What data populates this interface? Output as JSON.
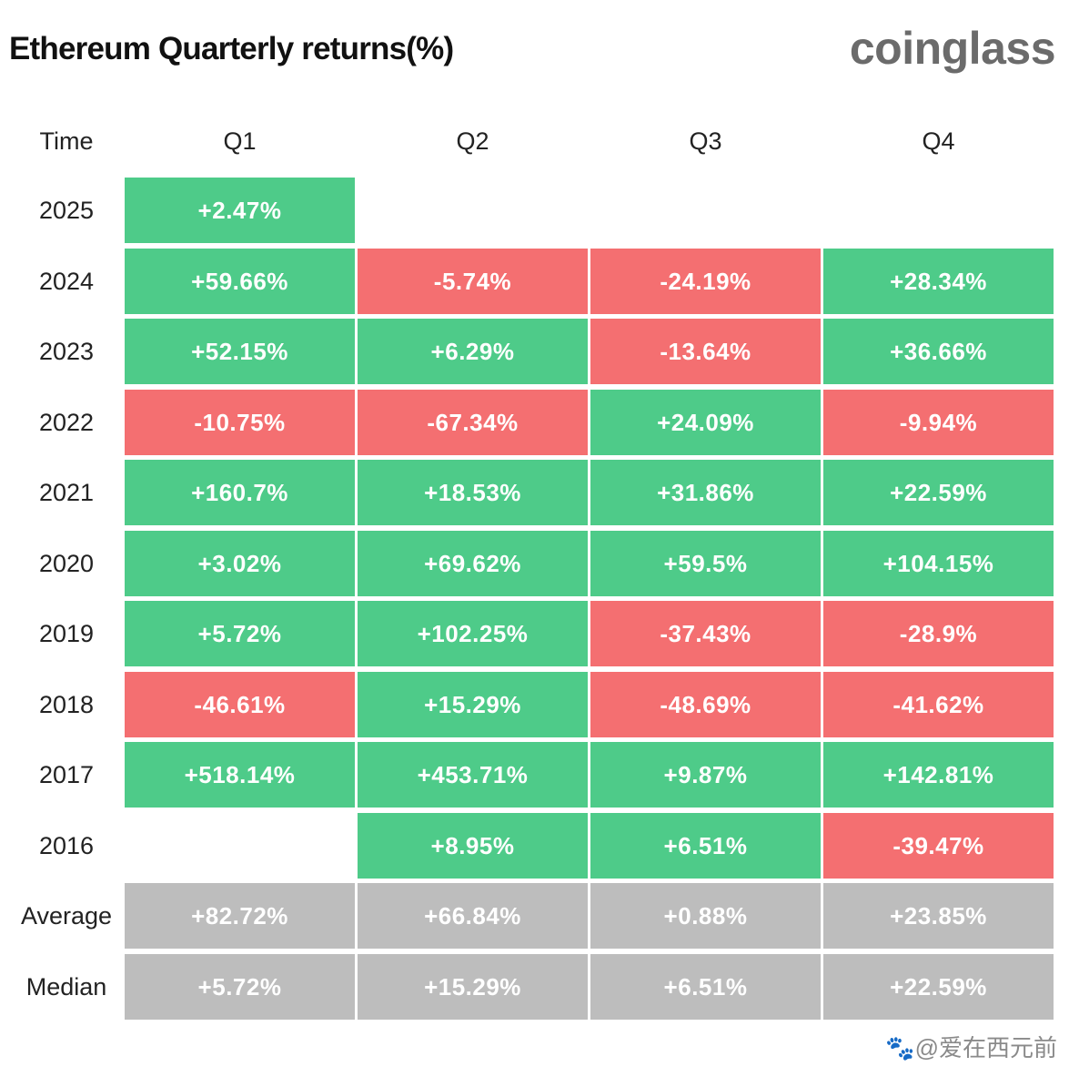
{
  "title": "Ethereum Quarterly returns(%)",
  "logo": "coinglass",
  "watermark": "🐾@爱在西元前",
  "colors": {
    "positive": "#4ecb89",
    "negative": "#f46f71",
    "summary": "#bdbdbd"
  },
  "chart_data": {
    "type": "table",
    "title": "Ethereum Quarterly returns(%)",
    "time_header": "Time",
    "columns": [
      "Q1",
      "Q2",
      "Q3",
      "Q4"
    ],
    "rows": [
      {
        "label": "2025",
        "values": [
          "+2.47%",
          "",
          "",
          ""
        ]
      },
      {
        "label": "2024",
        "values": [
          "+59.66%",
          "-5.74%",
          "-24.19%",
          "+28.34%"
        ]
      },
      {
        "label": "2023",
        "values": [
          "+52.15%",
          "+6.29%",
          "-13.64%",
          "+36.66%"
        ]
      },
      {
        "label": "2022",
        "values": [
          "-10.75%",
          "-67.34%",
          "+24.09%",
          "-9.94%"
        ]
      },
      {
        "label": "2021",
        "values": [
          "+160.7%",
          "+18.53%",
          "+31.86%",
          "+22.59%"
        ]
      },
      {
        "label": "2020",
        "values": [
          "+3.02%",
          "+69.62%",
          "+59.5%",
          "+104.15%"
        ]
      },
      {
        "label": "2019",
        "values": [
          "+5.72%",
          "+102.25%",
          "-37.43%",
          "-28.9%"
        ]
      },
      {
        "label": "2018",
        "values": [
          "-46.61%",
          "+15.29%",
          "-48.69%",
          "-41.62%"
        ]
      },
      {
        "label": "2017",
        "values": [
          "+518.14%",
          "+453.71%",
          "+9.87%",
          "+142.81%"
        ]
      },
      {
        "label": "2016",
        "values": [
          "",
          "+8.95%",
          "+6.51%",
          "-39.47%"
        ]
      }
    ],
    "summary_rows": [
      {
        "label": "Average",
        "values": [
          "+82.72%",
          "+66.84%",
          "+0.88%",
          "+23.85%"
        ]
      },
      {
        "label": "Median",
        "values": [
          "+5.72%",
          "+15.29%",
          "+6.51%",
          "+22.59%"
        ]
      }
    ]
  }
}
